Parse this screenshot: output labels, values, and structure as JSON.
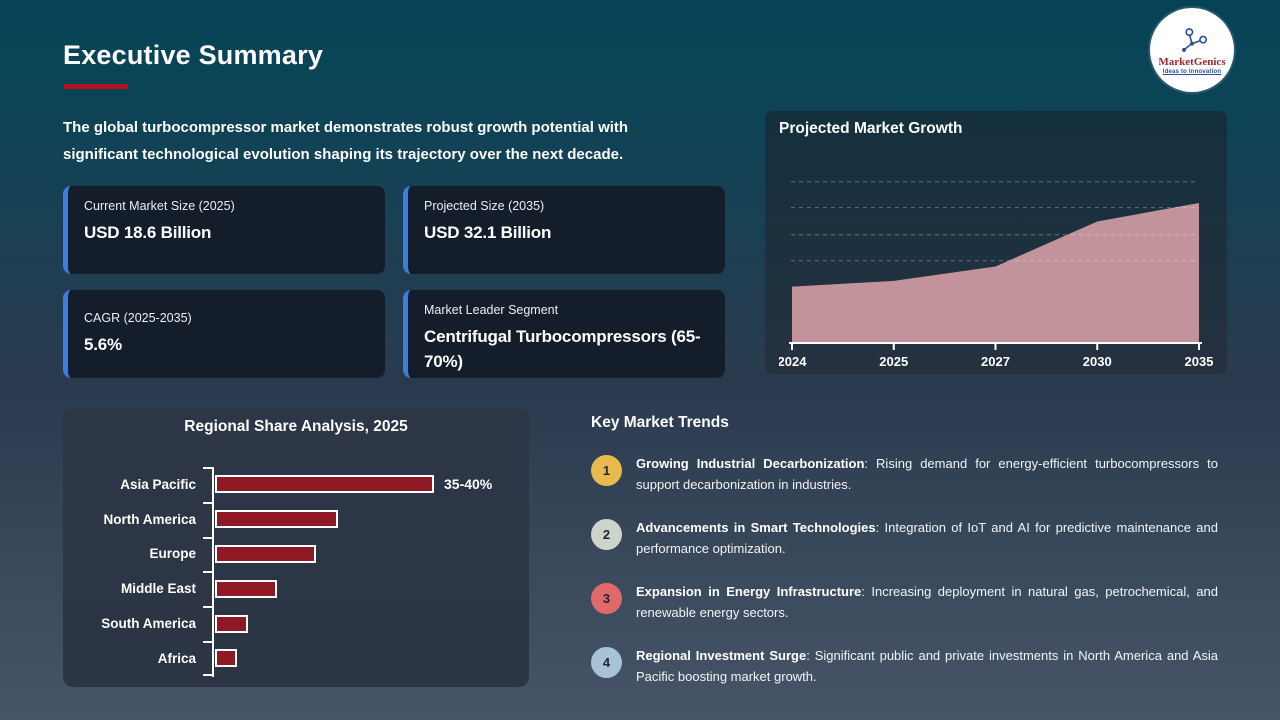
{
  "slide": {
    "title": "Executive Summary",
    "intro": "The global turbocompressor market demonstrates robust growth potential with significant technological evolution shaping its trajectory over the next decade."
  },
  "logo": {
    "brand": "MarketGenics",
    "tagline": "Ideas to Innovation"
  },
  "colors": {
    "accent_red": "#b5121f",
    "card_accent_blue": "#3d7ce0",
    "background_top": "#054356",
    "background_bottom": "#485569"
  },
  "stat_cards": [
    {
      "label": "Current Market Size (2025)",
      "value": "USD 18.6 Billion"
    },
    {
      "label": "Projected Size (2035)",
      "value": "USD 32.1 Billion"
    },
    {
      "label": "CAGR (2025-2035)",
      "value": "5.6%"
    },
    {
      "label": "Market Leader Segment",
      "value": "Centrifugal Turbocompressors (65-70%)"
    }
  ],
  "trends": {
    "title": "Key Market Trends",
    "items": [
      {
        "num": "1",
        "badge_color": "#e8b94d",
        "bold": "Growing Industrial Decarbonization",
        "text": ": Rising demand for energy-efficient turbocompressors to support decarbonization in industries."
      },
      {
        "num": "2",
        "badge_color": "#cdd4c9",
        "bold": "Advancements in Smart Technologies",
        "text": ": Integration of IoT and AI for predictive maintenance and performance optimization."
      },
      {
        "num": "3",
        "badge_color": "#df696b",
        "bold": "Expansion in Energy Infrastructure",
        "text": ": Increasing deployment in natural gas, petrochemical, and renewable energy sectors."
      },
      {
        "num": "4",
        "badge_color": "#a7c4d6",
        "bold": "Regional Investment Surge",
        "text": ": Significant public and private investments in North America and Asia Pacific boosting market growth."
      }
    ]
  },
  "chart_data": [
    {
      "type": "area",
      "title": "Projected Market Growth",
      "x": [
        "2024",
        "2025",
        "2027",
        "2030",
        "2035"
      ],
      "values": [
        17.6,
        18.6,
        21.1,
        28.9,
        32.1
      ],
      "ylim": [
        8,
        38
      ],
      "gridlines": [
        22.1,
        26.6,
        31.3,
        35.8
      ],
      "grid_style": "dashed",
      "fill_color": "#c2939b",
      "axis_color": "#ffffff",
      "legend": "none"
    },
    {
      "type": "bar",
      "orientation": "horizontal",
      "title": "Regional Share Analysis, 2025",
      "categories": [
        "Asia Pacific",
        "North America",
        "Europe",
        "Middle East",
        "South America",
        "Africa"
      ],
      "values": [
        37.5,
        21.0,
        17.3,
        10.6,
        5.7,
        3.8
      ],
      "xlim": [
        0,
        40
      ],
      "bar_color": "#8f1a25",
      "bar_border_color": "#ffffff",
      "data_labels": [
        "35-40%",
        "",
        "",
        "",
        "",
        ""
      ]
    }
  ]
}
